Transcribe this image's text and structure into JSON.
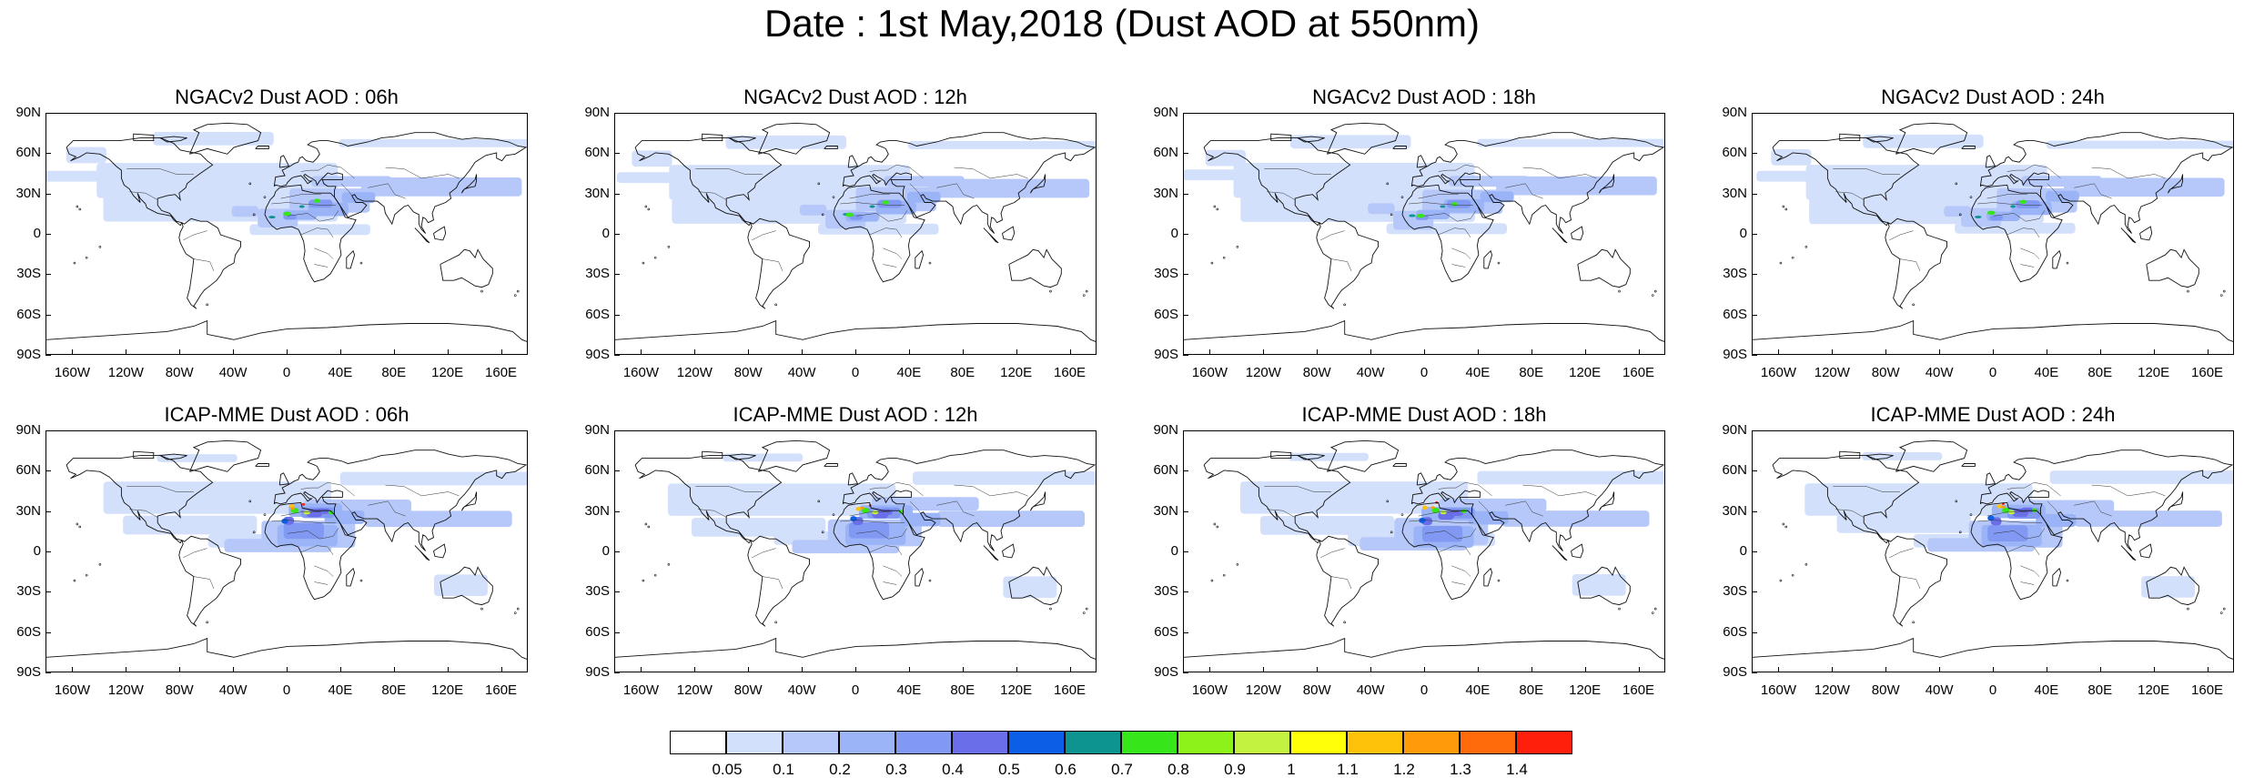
{
  "title": "Date : 1st May,2018 (Dust AOD at 550nm)",
  "panels": [
    {
      "title": "NGACv2 Dust AOD : 06h",
      "model": "ngac"
    },
    {
      "title": "NGACv2 Dust AOD : 12h",
      "model": "ngac"
    },
    {
      "title": "NGACv2 Dust AOD : 18h",
      "model": "ngac"
    },
    {
      "title": "NGACv2 Dust AOD : 24h",
      "model": "ngac"
    },
    {
      "title": "ICAP-MME Dust AOD : 06h",
      "model": "icap"
    },
    {
      "title": "ICAP-MME Dust AOD : 12h",
      "model": "icap"
    },
    {
      "title": "ICAP-MME Dust AOD : 18h",
      "model": "icap"
    },
    {
      "title": "ICAP-MME Dust AOD : 24h",
      "model": "icap"
    }
  ],
  "axes": {
    "lat_labels": [
      "90N",
      "60N",
      "30N",
      "0",
      "30S",
      "60S",
      "90S"
    ],
    "lon_labels": [
      "160W",
      "120W",
      "80W",
      "40W",
      "0",
      "40E",
      "80E",
      "120E",
      "160E"
    ]
  },
  "colorbar": {
    "labels": [
      "0.05",
      "0.1",
      "0.2",
      "0.3",
      "0.4",
      "0.5",
      "0.6",
      "0.7",
      "0.8",
      "0.9",
      "1",
      "1.1",
      "1.2",
      "1.3",
      "1.4"
    ],
    "colors": [
      "#ffffff",
      "#d3e0fb",
      "#b6c8f9",
      "#9ab4f7",
      "#8199f2",
      "#6a6fe9",
      "#0d5ee6",
      "#0d9490",
      "#36e61a",
      "#8df21a",
      "#c3f240",
      "#ffff0a",
      "#ffc20a",
      "#ff9a0a",
      "#ff6a0a",
      "#ff1f0a"
    ]
  }
}
